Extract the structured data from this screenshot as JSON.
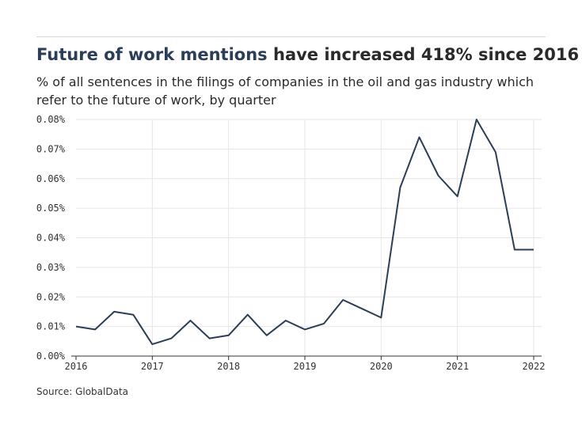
{
  "header": {
    "title_highlight": "Future of work mentions",
    "title_rest": " have increased 418% since 2016",
    "subtitle": "% of all sentences in the filings of companies in the oil and gas industry which refer to the future of work, by quarter"
  },
  "footer": {
    "source": "Source: GlobalData"
  },
  "colors": {
    "line": "#2c3e57",
    "grid": "#e6e6e6",
    "axis": "#333333",
    "highlight": "#2c3e57"
  },
  "chart_data": {
    "type": "line",
    "title": "Future of work mentions have increased 418% since 2016",
    "xlabel": "",
    "ylabel": "",
    "xlim": [
      2016,
      2022
    ],
    "ylim": [
      0,
      0.08
    ],
    "x_ticks": [
      "2016",
      "2017",
      "2018",
      "2019",
      "2020",
      "2021",
      "2022"
    ],
    "y_ticks": [
      "0.00%",
      "0.01%",
      "0.02%",
      "0.03%",
      "0.04%",
      "0.05%",
      "0.06%",
      "0.07%",
      "0.08%"
    ],
    "grid": true,
    "series": [
      {
        "x": [
          "2016 Q1",
          "2016 Q2",
          "2016 Q3",
          "2016 Q4",
          "2017 Q1",
          "2017 Q2",
          "2017 Q3",
          "2017 Q4",
          "2018 Q1",
          "2018 Q2",
          "2018 Q3",
          "2018 Q4",
          "2019 Q1",
          "2019 Q2",
          "2019 Q3",
          "2019 Q4",
          "2020 Q1",
          "2020 Q2",
          "2020 Q3",
          "2020 Q4",
          "2021 Q1",
          "2021 Q2",
          "2021 Q3",
          "2021 Q4",
          "2022 Q1"
        ],
        "values": [
          0.01,
          0.009,
          0.015,
          0.014,
          0.004,
          0.006,
          0.012,
          0.006,
          0.007,
          0.014,
          0.007,
          0.012,
          0.009,
          0.011,
          0.019,
          0.016,
          0.013,
          0.057,
          0.074,
          0.061,
          0.054,
          0.08,
          0.069,
          0.036,
          0.036
        ]
      }
    ]
  }
}
